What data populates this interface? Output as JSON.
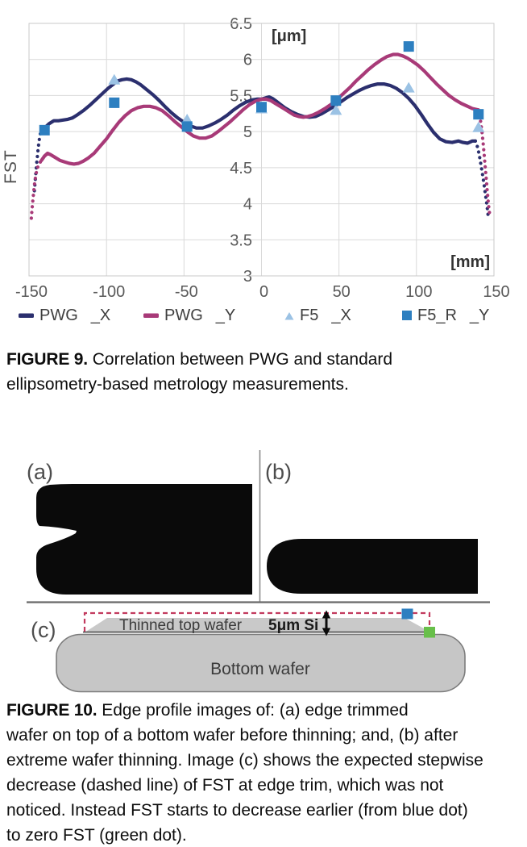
{
  "chart_data": {
    "type": "line+scatter",
    "title": "",
    "ylabel": "FST",
    "y_unit": "[μm]",
    "x_unit": "[mm]",
    "xlim": [
      -150,
      150
    ],
    "ylim": [
      3,
      6.5
    ],
    "x_ticks": [
      -150,
      -100,
      -50,
      0,
      50,
      100,
      150
    ],
    "y_ticks": [
      6.5,
      6,
      5.5,
      5,
      4.5,
      4,
      3.5,
      3
    ],
    "grid": true,
    "grid_color": "#d9d9d9",
    "border_color": "#c9c9c9",
    "tick_color": "#595959",
    "legend_position": "bottom",
    "series": [
      {
        "name": "PWG",
        "axis": "_X",
        "type": "line",
        "color": "#2b2f6e",
        "legend_marker": "dash",
        "segments": [
          {
            "style": "dotted",
            "points": [
              [
                -146.5,
                4.18
              ],
              [
                -146,
                4.32
              ],
              [
                -145.5,
                4.45
              ],
              [
                -145,
                4.57
              ],
              [
                -144.5,
                4.68
              ],
              [
                -144,
                4.78
              ],
              [
                -143.5,
                4.87
              ],
              [
                -143,
                4.94
              ],
              [
                -142.5,
                4.99
              ],
              [
                -142,
                5.03
              ],
              [
                -141,
                5.06
              ],
              [
                -140,
                5.05
              ]
            ]
          },
          {
            "style": "solid",
            "points": [
              [
                -140,
                5.05
              ],
              [
                -137,
                5.11
              ],
              [
                -134,
                5.15
              ],
              [
                -131,
                5.15
              ],
              [
                -128,
                5.16
              ],
              [
                -125,
                5.17
              ],
              [
                -122,
                5.19
              ],
              [
                -119,
                5.23
              ],
              [
                -115,
                5.29
              ],
              [
                -111,
                5.36
              ],
              [
                -107,
                5.44
              ],
              [
                -103,
                5.52
              ],
              [
                -99,
                5.6
              ],
              [
                -96,
                5.65
              ],
              [
                -93,
                5.7
              ],
              [
                -90,
                5.72
              ],
              [
                -87,
                5.73
              ],
              [
                -84,
                5.72
              ],
              [
                -81,
                5.69
              ],
              [
                -78,
                5.65
              ],
              [
                -74,
                5.58
              ],
              [
                -70,
                5.51
              ],
              [
                -66,
                5.43
              ],
              [
                -62,
                5.34
              ],
              [
                -58,
                5.26
              ],
              [
                -54,
                5.19
              ],
              [
                -50,
                5.13
              ],
              [
                -46,
                5.08
              ],
              [
                -42,
                5.05
              ],
              [
                -38,
                5.05
              ],
              [
                -34,
                5.08
              ],
              [
                -30,
                5.12
              ],
              [
                -26,
                5.17
              ],
              [
                -22,
                5.23
              ],
              [
                -18,
                5.3
              ],
              [
                -14,
                5.36
              ],
              [
                -10,
                5.41
              ],
              [
                -6,
                5.44
              ],
              [
                -3,
                5.45
              ],
              [
                0,
                5.45
              ],
              [
                3,
                5.47
              ],
              [
                5,
                5.48
              ],
              [
                7,
                5.46
              ],
              [
                9,
                5.43
              ],
              [
                12,
                5.38
              ],
              [
                15,
                5.33
              ],
              [
                19,
                5.28
              ],
              [
                23,
                5.24
              ],
              [
                27,
                5.21
              ],
              [
                31,
                5.2
              ],
              [
                35,
                5.21
              ],
              [
                39,
                5.25
              ],
              [
                43,
                5.3
              ],
              [
                47,
                5.35
              ],
              [
                51,
                5.41
              ],
              [
                55,
                5.47
              ],
              [
                59,
                5.52
              ],
              [
                63,
                5.57
              ],
              [
                67,
                5.61
              ],
              [
                71,
                5.64
              ],
              [
                75,
                5.66
              ],
              [
                79,
                5.66
              ],
              [
                83,
                5.64
              ],
              [
                87,
                5.6
              ],
              [
                91,
                5.54
              ],
              [
                95,
                5.46
              ],
              [
                99,
                5.36
              ],
              [
                103,
                5.24
              ],
              [
                107,
                5.11
              ],
              [
                111,
                4.99
              ],
              [
                115,
                4.9
              ],
              [
                119,
                4.86
              ],
              [
                123,
                4.85
              ],
              [
                127,
                4.87
              ],
              [
                130,
                4.85
              ],
              [
                133,
                4.84
              ],
              [
                136,
                4.87
              ],
              [
                138,
                4.87
              ]
            ]
          },
          {
            "style": "dotted",
            "points": [
              [
                138,
                4.87
              ],
              [
                139.5,
                4.78
              ],
              [
                140.5,
                4.68
              ],
              [
                141.5,
                4.55
              ],
              [
                142.5,
                4.42
              ],
              [
                143.5,
                4.28
              ],
              [
                144.5,
                4.13
              ],
              [
                145.5,
                3.98
              ],
              [
                146,
                3.88
              ],
              [
                146.5,
                3.78
              ]
            ]
          }
        ]
      },
      {
        "name": "PWG",
        "axis": "_Y",
        "type": "line",
        "color": "#a83a78",
        "legend_marker": "dash",
        "segments": [
          {
            "style": "dotted",
            "points": [
              [
                -148.5,
                3.8
              ],
              [
                -148,
                3.93
              ],
              [
                -147.5,
                4.05
              ],
              [
                -147,
                4.16
              ],
              [
                -146.5,
                4.26
              ],
              [
                -146,
                4.34
              ],
              [
                -145.5,
                4.41
              ],
              [
                -145,
                4.46
              ],
              [
                -144.5,
                4.5
              ],
              [
                -144,
                4.53
              ],
              [
                -143,
                4.57
              ],
              [
                -142,
                4.6
              ]
            ]
          },
          {
            "style": "solid",
            "points": [
              [
                -142,
                4.6
              ],
              [
                -140,
                4.66
              ],
              [
                -138,
                4.7
              ],
              [
                -136,
                4.68
              ],
              [
                -133,
                4.64
              ],
              [
                -130,
                4.6
              ],
              [
                -127,
                4.58
              ],
              [
                -124,
                4.56
              ],
              [
                -121,
                4.55
              ],
              [
                -118,
                4.56
              ],
              [
                -115,
                4.59
              ],
              [
                -112,
                4.63
              ],
              [
                -108,
                4.7
              ],
              [
                -104,
                4.8
              ],
              [
                -100,
                4.9
              ],
              [
                -96,
                5.02
              ],
              [
                -92,
                5.13
              ],
              [
                -88,
                5.22
              ],
              [
                -84,
                5.29
              ],
              [
                -80,
                5.33
              ],
              [
                -76,
                5.35
              ],
              [
                -72,
                5.35
              ],
              [
                -68,
                5.33
              ],
              [
                -64,
                5.29
              ],
              [
                -60,
                5.22
              ],
              [
                -56,
                5.14
              ],
              [
                -52,
                5.07
              ],
              [
                -48,
                5.0
              ],
              [
                -44,
                4.94
              ],
              [
                -40,
                4.91
              ],
              [
                -36,
                4.91
              ],
              [
                -32,
                4.94
              ],
              [
                -28,
                5.0
              ],
              [
                -24,
                5.07
              ],
              [
                -20,
                5.14
              ],
              [
                -16,
                5.22
              ],
              [
                -12,
                5.3
              ],
              [
                -8,
                5.37
              ],
              [
                -4,
                5.42
              ],
              [
                0,
                5.45
              ],
              [
                3,
                5.45
              ],
              [
                6,
                5.43
              ],
              [
                9,
                5.39
              ],
              [
                12,
                5.35
              ],
              [
                15,
                5.31
              ],
              [
                18,
                5.27
              ],
              [
                21,
                5.23
              ],
              [
                24,
                5.21
              ],
              [
                27,
                5.2
              ],
              [
                30,
                5.21
              ],
              [
                33,
                5.23
              ],
              [
                37,
                5.27
              ],
              [
                41,
                5.32
              ],
              [
                45,
                5.38
              ],
              [
                49,
                5.45
              ],
              [
                53,
                5.53
              ],
              [
                57,
                5.61
              ],
              [
                61,
                5.7
              ],
              [
                65,
                5.78
              ],
              [
                69,
                5.86
              ],
              [
                73,
                5.93
              ],
              [
                77,
                5.99
              ],
              [
                81,
                6.04
              ],
              [
                85,
                6.07
              ],
              [
                88,
                6.07
              ],
              [
                91,
                6.05
              ],
              [
                94,
                6.02
              ],
              [
                97,
                5.98
              ],
              [
                101,
                5.92
              ],
              [
                105,
                5.84
              ],
              [
                109,
                5.75
              ],
              [
                113,
                5.66
              ],
              [
                117,
                5.58
              ],
              [
                121,
                5.5
              ],
              [
                125,
                5.44
              ],
              [
                129,
                5.39
              ],
              [
                133,
                5.35
              ],
              [
                136,
                5.32
              ],
              [
                140,
                5.3
              ]
            ]
          },
          {
            "style": "dotted",
            "points": [
              [
                140,
                5.3
              ],
              [
                141,
                5.2
              ],
              [
                141.8,
                5.08
              ],
              [
                142.5,
                4.95
              ],
              [
                143.2,
                4.8
              ],
              [
                143.8,
                4.65
              ],
              [
                144.4,
                4.5
              ],
              [
                145,
                4.35
              ],
              [
                145.6,
                4.2
              ],
              [
                146.2,
                4.05
              ],
              [
                146.8,
                3.93
              ],
              [
                147.2,
                3.86
              ]
            ]
          }
        ]
      },
      {
        "name": "F5",
        "axis": "_X",
        "type": "scatter",
        "color": "#9bc2e4",
        "legend_marker": "triangle",
        "points": [
          [
            -95,
            5.72
          ],
          [
            -48,
            5.17
          ],
          [
            0,
            5.32
          ],
          [
            48,
            5.3
          ],
          [
            95,
            5.61
          ],
          [
            140,
            5.06
          ]
        ]
      },
      {
        "name": "F5_R",
        "axis": "_Y",
        "type": "scatter",
        "color": "#2d7fc0",
        "legend_marker": "square",
        "points": [
          [
            -140,
            5.02
          ],
          [
            -95,
            5.4
          ],
          [
            -48,
            5.07
          ],
          [
            0,
            5.34
          ],
          [
            48,
            5.43
          ],
          [
            95,
            6.18
          ],
          [
            140,
            5.24
          ]
        ]
      }
    ]
  },
  "figure9": {
    "caption_label": "FIGURE 9.",
    "caption_lines": [
      "Correlation between PWG and standard",
      "ellipsometry-based metrology measurements."
    ]
  },
  "figure10": {
    "caption_label": "FIGURE 10.",
    "caption_lines": [
      "Edge profile images of: (a) edge trimmed",
      "wafer on top of a bottom wafer before thinning; and, (b) after",
      "extreme wafer thinning. Image (c) shows the expected stepwise",
      "decrease (dashed line) of FST at edge trim, which was not",
      "noticed. Instead FST starts to decrease earlier (from blue dot)",
      "to zero FST (green dot)."
    ],
    "panel_labels": {
      "a": "(a)",
      "b": "(b)",
      "c": "(c)"
    },
    "diagram_labels": {
      "thinned_top_wafer": "Thinned top wafer",
      "thickness": "5μm Si",
      "bottom_wafer": "Bottom wafer"
    },
    "colors": {
      "expected_step_dashed": "#c23a5e",
      "blue_dot": "#2d7fc0",
      "green_dot": "#68bf4a",
      "wafer_gray": "#c6c6c6",
      "wafer_outline": "#7c7c7c",
      "silhouette": "#0a0a0a"
    }
  }
}
